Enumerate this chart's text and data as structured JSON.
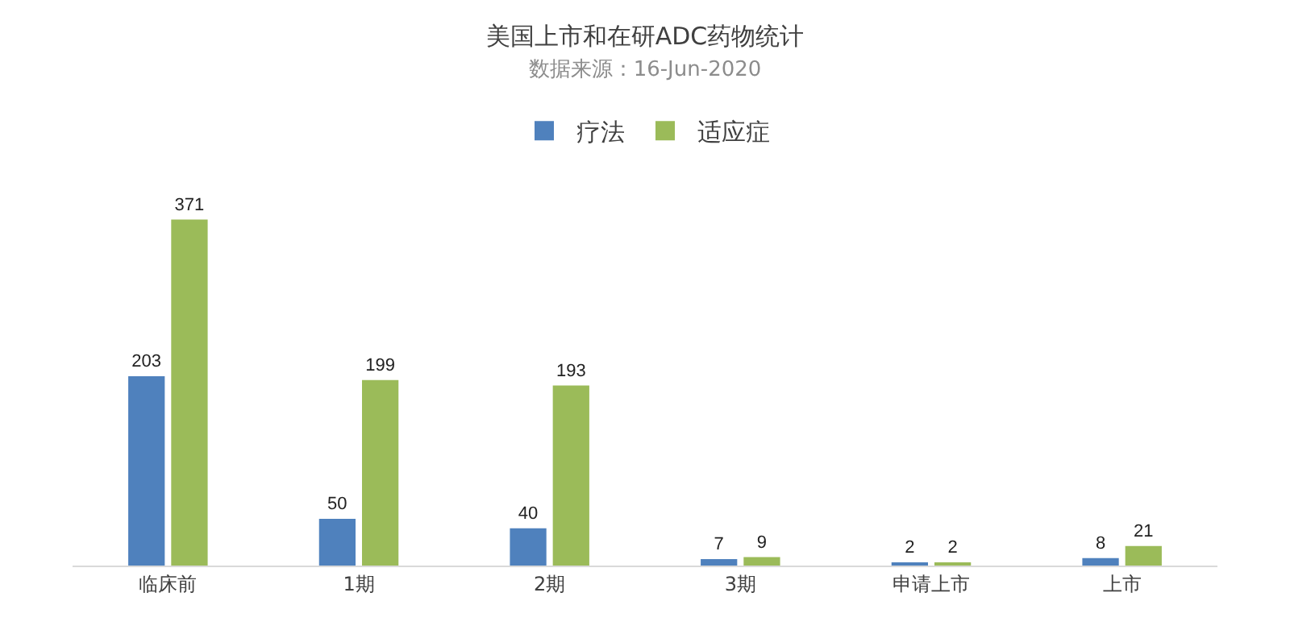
{
  "chart_data": {
    "type": "bar",
    "title": "美国上市和在研ADC药物统计",
    "subtitle": "数据来源：16-Jun-2020",
    "categories": [
      "临床前",
      "1期",
      "2期",
      "3期",
      "申请上市",
      "上市"
    ],
    "series": [
      {
        "name": "疗法",
        "color": "#4f81bd",
        "values": [
          203,
          50,
          40,
          7,
          2,
          8
        ]
      },
      {
        "name": "适应症",
        "color": "#9bbb59",
        "values": [
          371,
          199,
          193,
          9,
          2,
          21
        ]
      }
    ],
    "data_labels": true,
    "legend": "top",
    "grid": false
  }
}
